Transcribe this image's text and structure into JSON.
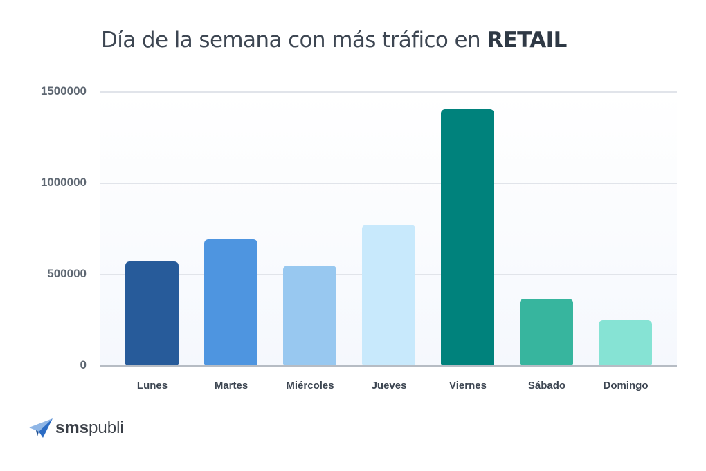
{
  "title": {
    "prefix": "Día de la semana con más tráfico en ",
    "emphasis": "RETAIL"
  },
  "logo": {
    "bold": "sms",
    "light": "publi",
    "icon": "paper-plane-icon"
  },
  "y_ticks": [
    "1500000",
    "1000000",
    "500000",
    "0"
  ],
  "chart_data": {
    "type": "bar",
    "title": "Día de la semana con más tráfico en RETAIL",
    "xlabel": "",
    "ylabel": "",
    "categories": [
      "Lunes",
      "Martes",
      "Miércoles",
      "Jueves",
      "Viernes",
      "Sábado",
      "Domingo"
    ],
    "values": [
      572000,
      693000,
      549000,
      773000,
      1405000,
      367000,
      250000
    ],
    "colors": [
      "#275b9a",
      "#4e95e0",
      "#98c8f0",
      "#c8e9fc",
      "#00827c",
      "#37b59e",
      "#86e3d4"
    ],
    "ylim": [
      0,
      1500000
    ],
    "yticks": [
      0,
      500000,
      1000000,
      1500000
    ],
    "grid": true,
    "legend": "none"
  }
}
